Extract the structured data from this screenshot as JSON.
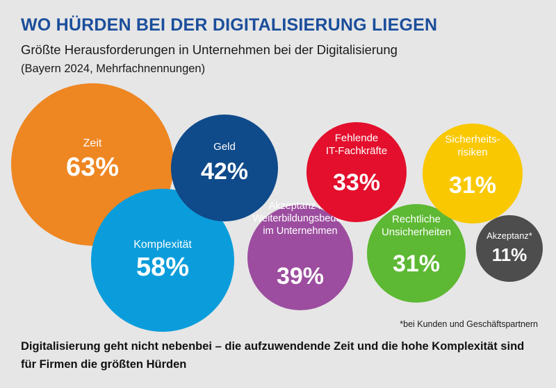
{
  "header": {
    "title": "WO HÜRDEN BEI DER DIGITALISIERUNG LIEGEN",
    "subtitle": "Größte Herausforderungen in Unternehmen bei der Digitalisierung",
    "subtitle2": "(Bayern 2024, Mehrfachnennungen)"
  },
  "chart_data": {
    "type": "bubble",
    "unit": "%",
    "items": [
      {
        "label": [
          "Zeit"
        ],
        "value": 63,
        "display": "63%",
        "color": "#ee8622"
      },
      {
        "label": [
          "Komplexität"
        ],
        "value": 58,
        "display": "58%",
        "color": "#0b9ddb"
      },
      {
        "label": [
          "Geld"
        ],
        "value": 42,
        "display": "42%",
        "color": "#0f4a8a"
      },
      {
        "label": [
          "Akzeptanz bei",
          "Weiterbildungsbedarf",
          "im Unternehmen"
        ],
        "value": 39,
        "display": "39%",
        "color": "#9c4d9f"
      },
      {
        "label": [
          "Fehlende",
          "IT-Fachkräfte"
        ],
        "value": 33,
        "display": "33%",
        "color": "#e30f2c"
      },
      {
        "label": [
          "Rechtliche",
          "Unsicherheiten"
        ],
        "value": 31,
        "display": "31%",
        "color": "#5db833"
      },
      {
        "label": [
          "Sicherheits-",
          "risiken"
        ],
        "value": 31,
        "display": "31%",
        "color": "#f9c800"
      },
      {
        "label": [
          "Akzeptanz*"
        ],
        "value": 11,
        "display": "11%",
        "color": "#4d4d4d"
      }
    ]
  },
  "footnote": "*bei Kunden und Geschäftspartnern",
  "conclusion": "Digitalisierung geht nicht nebenbei – die aufzuwendende Zeit und die hohe Komplexität sind für Firmen die größten Hürden"
}
